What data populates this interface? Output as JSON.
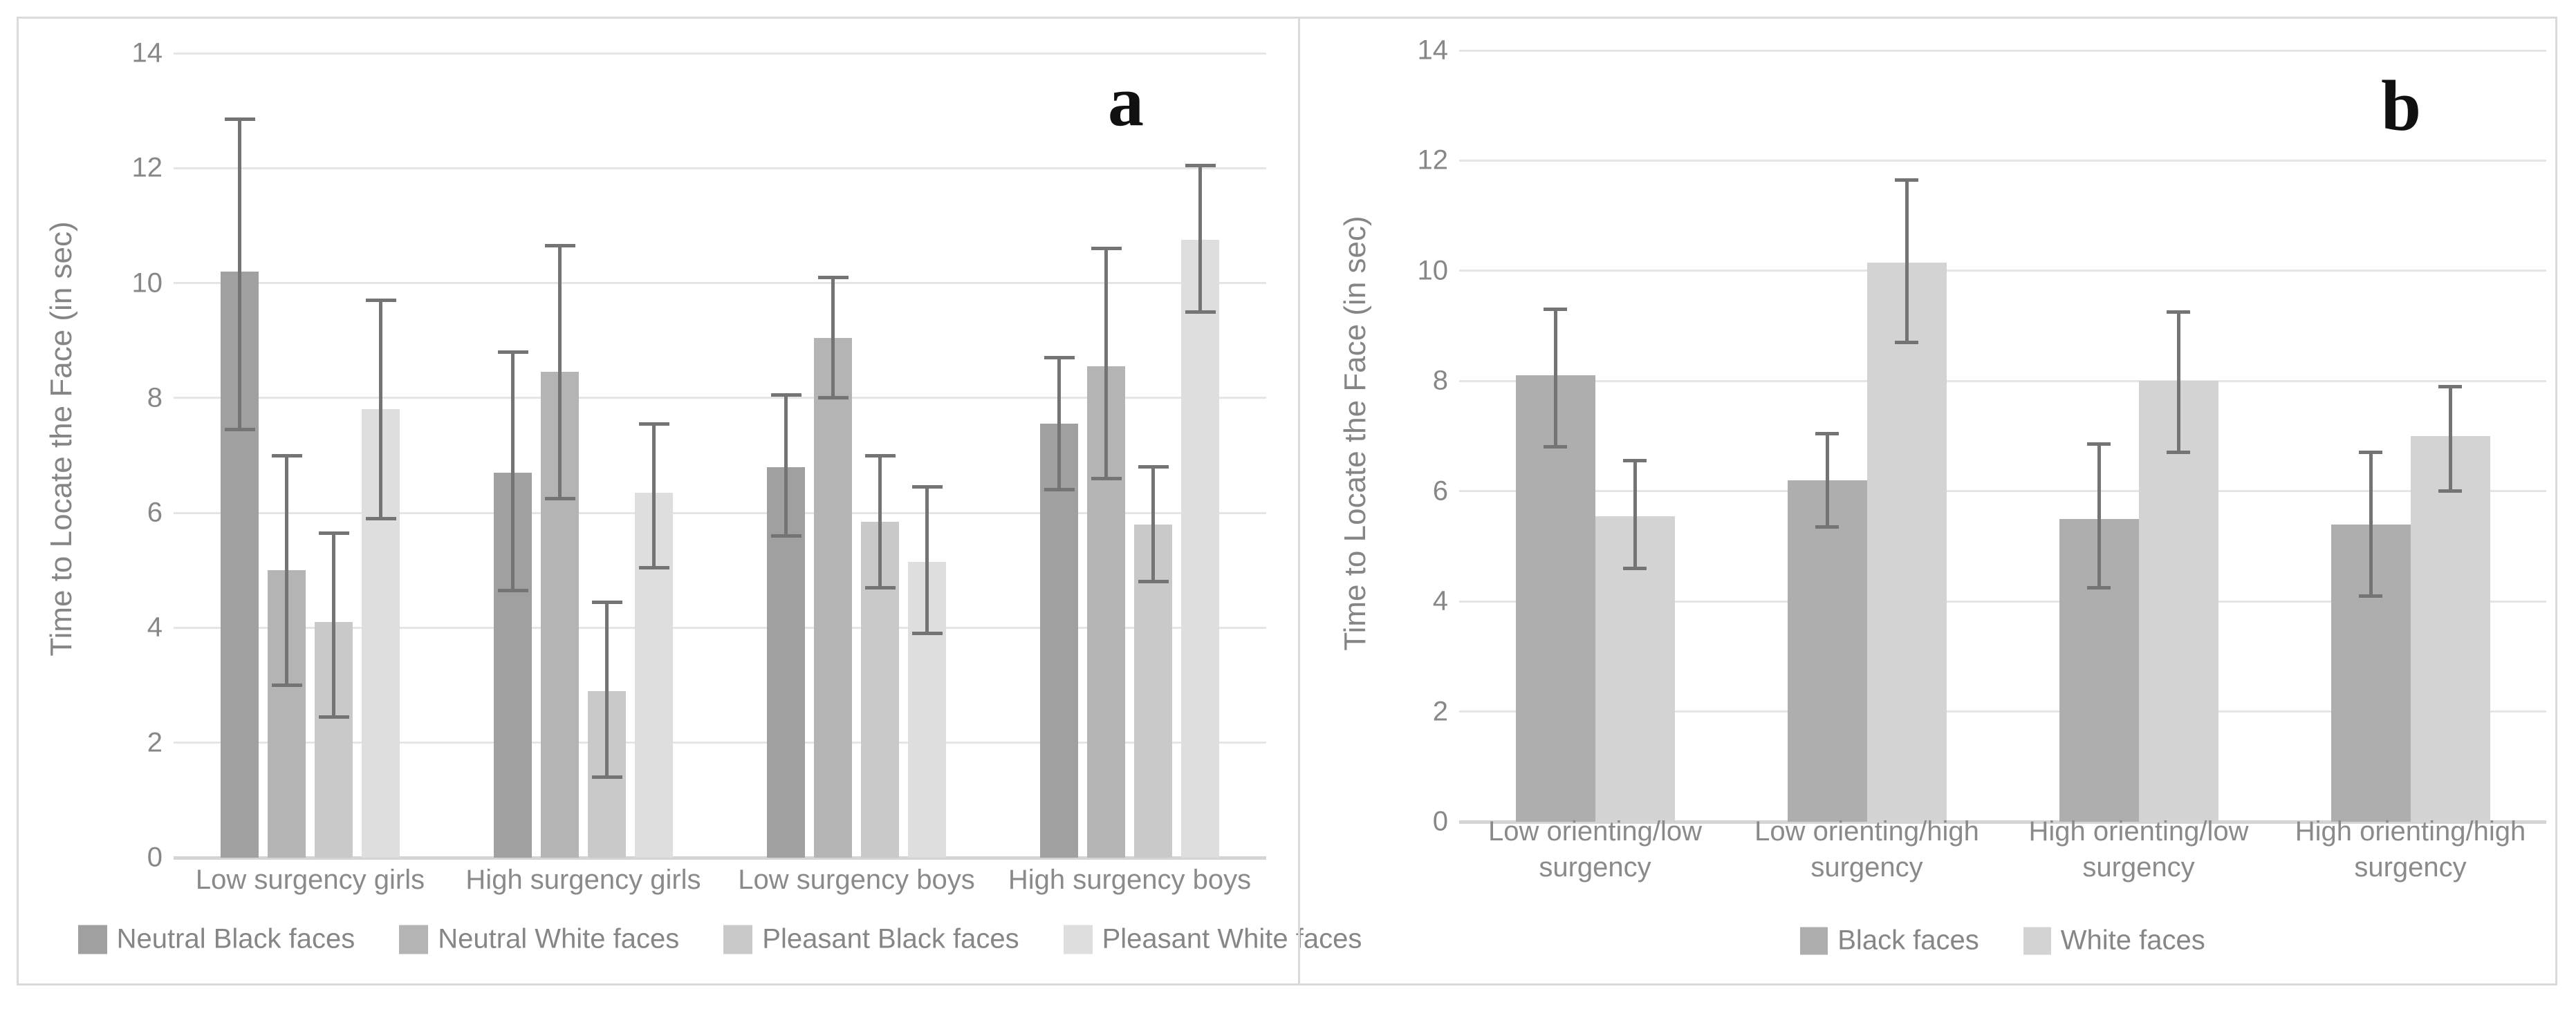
{
  "figure": {
    "styles": {
      "background": "#ffffff",
      "border": "#dadada",
      "gridline": "#e5e5e5",
      "baseline": "#d4d4d4",
      "error_bar": "#747474",
      "text": "#878787",
      "panel_letter": "#111111"
    }
  },
  "chart_data": [
    {
      "type": "bar",
      "panel_label": "a",
      "title": "",
      "xlabel": "",
      "ylabel": "Time to Locate the Face (in sec)",
      "ylim": [
        0,
        14
      ],
      "yticks": [
        0,
        2,
        4,
        6,
        8,
        10,
        12,
        14
      ],
      "grid": true,
      "legend_position": "bottom",
      "categories": [
        "Low surgency girls",
        "High surgency girls",
        "Low surgency boys",
        "High surgency boys"
      ],
      "series": [
        {
          "name": "Neutral Black faces",
          "color": "#a0a0a0",
          "values": [
            10.2,
            6.7,
            6.8,
            7.55
          ],
          "err_low": [
            7.45,
            4.65,
            5.6,
            6.4
          ],
          "err_high": [
            12.85,
            8.8,
            8.05,
            8.7
          ]
        },
        {
          "name": "Neutral White faces",
          "color": "#b4b4b4",
          "values": [
            5.0,
            8.45,
            9.05,
            8.55
          ],
          "err_low": [
            3.0,
            6.25,
            8.0,
            6.6
          ],
          "err_high": [
            7.0,
            10.65,
            10.1,
            10.6
          ]
        },
        {
          "name": "Pleasant Black faces",
          "color": "#c9c9c9",
          "values": [
            4.1,
            2.9,
            5.85,
            5.8
          ],
          "err_low": [
            2.45,
            1.4,
            4.7,
            4.8
          ],
          "err_high": [
            5.65,
            4.45,
            7.0,
            6.8
          ]
        },
        {
          "name": "Pleasant White faces",
          "color": "#dedede",
          "values": [
            7.8,
            6.35,
            5.15,
            10.75
          ],
          "err_low": [
            5.9,
            5.05,
            3.9,
            9.5
          ],
          "err_high": [
            9.7,
            7.55,
            6.45,
            12.05
          ]
        }
      ]
    },
    {
      "type": "bar",
      "panel_label": "b",
      "title": "",
      "xlabel": "",
      "ylabel": "Time to Locate the Face (in sec)",
      "ylim": [
        0,
        14
      ],
      "yticks": [
        0,
        2,
        4,
        6,
        8,
        10,
        12,
        14
      ],
      "grid": true,
      "legend_position": "bottom",
      "categories": [
        [
          "Low orienting/low",
          "surgency"
        ],
        [
          "Low orienting/high",
          "surgency"
        ],
        [
          "High orienting/low",
          "surgency"
        ],
        [
          "High orienting/high",
          "surgency"
        ]
      ],
      "series": [
        {
          "name": "Black faces",
          "color": "#aeaeae",
          "values": [
            8.1,
            6.2,
            5.5,
            5.4
          ],
          "err_low": [
            6.8,
            5.35,
            4.25,
            4.1
          ],
          "err_high": [
            9.3,
            7.05,
            6.85,
            6.7
          ]
        },
        {
          "name": "White faces",
          "color": "#d3d3d3",
          "values": [
            5.55,
            10.15,
            8.0,
            7.0
          ],
          "err_low": [
            4.6,
            8.7,
            6.7,
            6.0
          ],
          "err_high": [
            6.55,
            11.65,
            9.25,
            7.9
          ]
        }
      ]
    }
  ]
}
